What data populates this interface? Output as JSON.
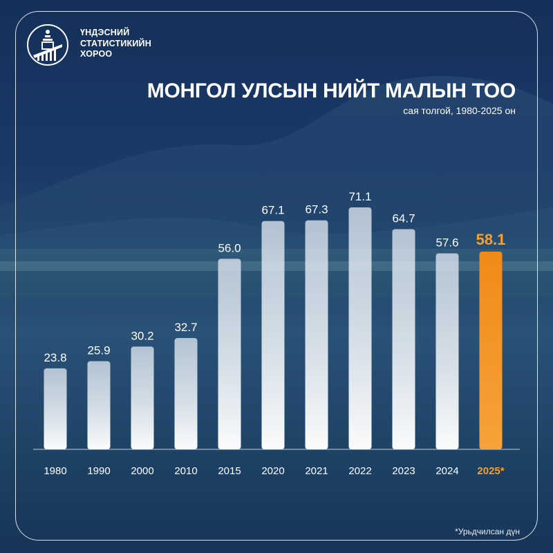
{
  "org": {
    "name_lines": [
      "ҮНДЭСНИЙ",
      "СТАТИСТИКИЙН",
      "ХОРОО"
    ]
  },
  "title": "МОНГОЛ УЛСЫН НИЙТ МАЛЫН ТОО",
  "subtitle": "сая толгой, 1980-2025 он",
  "footnote": "*Урьдчилсан дүн",
  "colors": {
    "bar": "#d9e3ee",
    "highlight": "#f5901e",
    "text": "#ffffff",
    "highlight_text": "#f5a030"
  },
  "chart_data": {
    "type": "bar",
    "categories": [
      "1980",
      "1990",
      "2000",
      "2010",
      "2015",
      "2020",
      "2021",
      "2022",
      "2023",
      "2024",
      "2025*"
    ],
    "values": [
      23.8,
      25.9,
      30.2,
      32.7,
      56.0,
      67.1,
      67.3,
      71.1,
      64.7,
      57.6,
      58.1
    ],
    "value_labels": [
      "23.8",
      "25.9",
      "30.2",
      "32.7",
      "56.0",
      "67.1",
      "67.3",
      "71.1",
      "64.7",
      "57.6",
      "58.1"
    ],
    "highlight_index": 10,
    "ylim": [
      0,
      75
    ],
    "grid": false,
    "title": "МОНГОЛ УЛСЫН НИЙТ МАЛЫН ТОО",
    "xlabel": "",
    "ylabel": ""
  }
}
